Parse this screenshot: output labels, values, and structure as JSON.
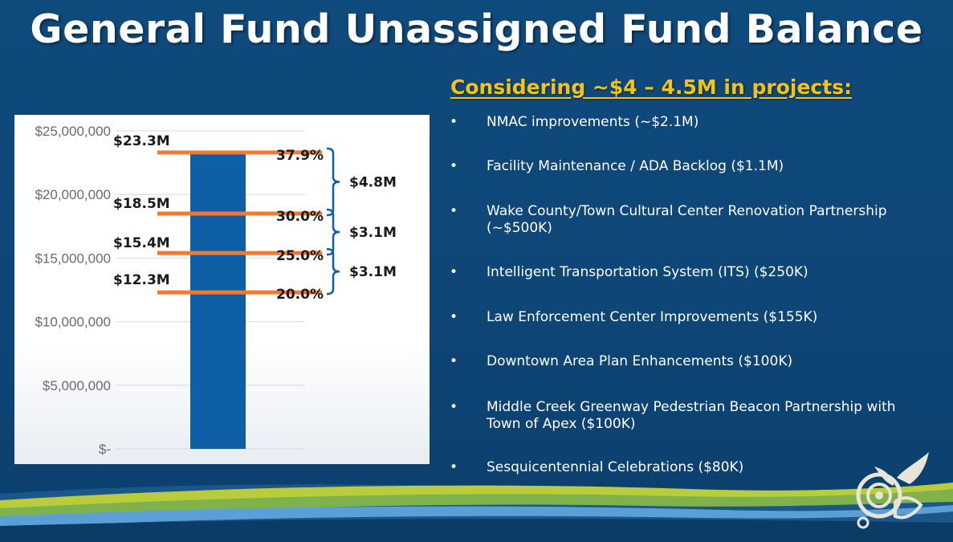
{
  "title": "General Fund Unassigned Fund Balance",
  "subtitle": "Considering ~$4 – 4.5M in projects:",
  "projects": [
    {
      "bullet": "•",
      "text": "NMAC improvements (~$2.1M)"
    },
    {
      "bullet": "•",
      "text": "Facility Maintenance / ADA Backlog ($1.1M)"
    },
    {
      "bullet": "•",
      "text": "Wake County/Town Cultural Center Renovation Partnership (~$500K)"
    },
    {
      "bullet": "•",
      "text": "Intelligent Transportation System (ITS) ($250K)"
    },
    {
      "bullet": "•",
      "text": "Law Enforcement Center Improvements ($155K)"
    },
    {
      "bullet": "•",
      "text": "Downtown Area Plan Enhancements ($100K)"
    },
    {
      "bullet": "•",
      "text": "Middle Creek Greenway Pedestrian Beacon Partnership with Town of Apex ($100K)"
    },
    {
      "bullet": "•",
      "text": "Sesquicentennial Celebrations ($80K)"
    }
  ],
  "colors": {
    "bar": "#0e5fa6",
    "level_line": "#f07a32",
    "bracket": "#0e5fa6",
    "subtitle": "#f3c318",
    "background": "#0f4a7c"
  },
  "chart_data": {
    "type": "bar",
    "categories": [
      ""
    ],
    "values": [
      23300000
    ],
    "ylim": [
      0,
      25000000
    ],
    "yticks": [
      {
        "value": 25000000,
        "label": "$25,000,000"
      },
      {
        "value": 20000000,
        "label": "$20,000,000"
      },
      {
        "value": 15000000,
        "label": "$15,000,000"
      },
      {
        "value": 10000000,
        "label": "$10,000,000"
      },
      {
        "value": 5000000,
        "label": "$5,000,000"
      },
      {
        "value": 0,
        "label": "$-"
      }
    ],
    "grid": true,
    "levels": [
      {
        "value": 23300000,
        "label": "$23.3M",
        "pct": "37.9%"
      },
      {
        "value": 18500000,
        "label": "$18.5M",
        "pct": "30.0%"
      },
      {
        "value": 15400000,
        "label": "$15.4M",
        "pct": "25.0%"
      },
      {
        "value": 12300000,
        "label": "$12.3M",
        "pct": "20.0%"
      }
    ],
    "brackets": [
      {
        "from": 23300000,
        "to": 18500000,
        "label": "$4.8M"
      },
      {
        "from": 18500000,
        "to": 15400000,
        "label": "$3.1M"
      },
      {
        "from": 15400000,
        "to": 12300000,
        "label": "$3.1M"
      }
    ]
  }
}
